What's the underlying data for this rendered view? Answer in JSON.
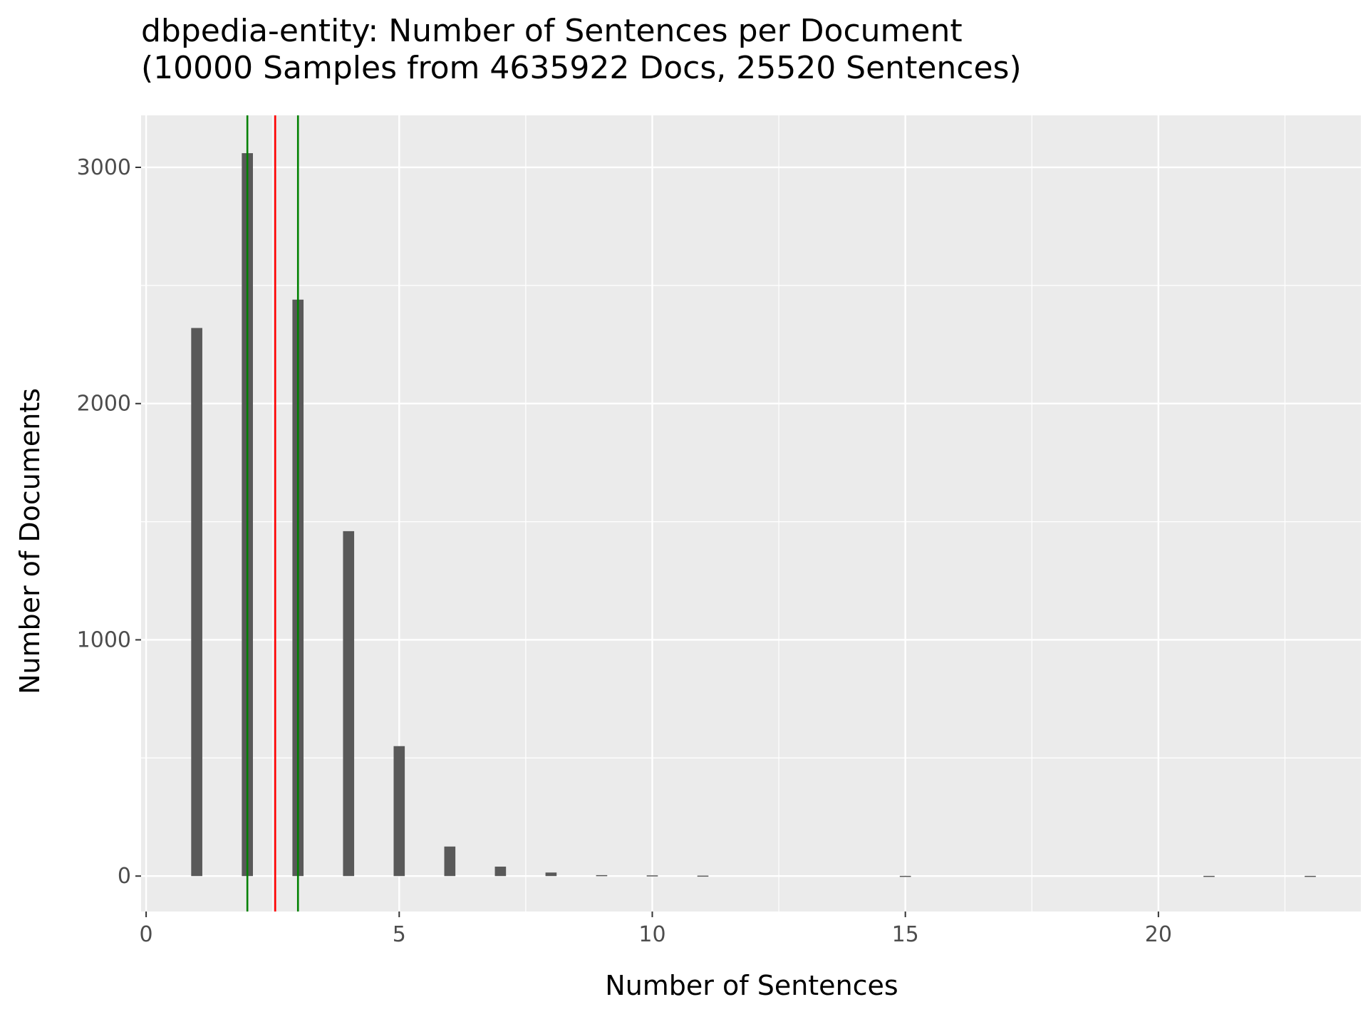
{
  "chart_data": {
    "type": "bar",
    "title_line1": "dbpedia-entity: Number of Sentences per Document",
    "title_line2": "(10000 Samples from 4635922 Docs, 25520 Sentences)",
    "xlabel": "Number of Sentences",
    "ylabel": "Number of Documents",
    "xlim": [
      -0.1,
      24.0
    ],
    "ylim": [
      -150,
      3220
    ],
    "x_ticks": [
      0,
      5,
      10,
      15,
      20
    ],
    "y_ticks": [
      0,
      1000,
      2000,
      3000
    ],
    "grid": true,
    "x": [
      1,
      2,
      3,
      4,
      5,
      6,
      7,
      8,
      9,
      10,
      11,
      15,
      21,
      23
    ],
    "values": [
      2320,
      3060,
      2440,
      1460,
      550,
      125,
      40,
      15,
      4,
      3,
      2,
      1,
      1,
      1
    ],
    "vlines": [
      {
        "x": 2.0,
        "color": "#008000"
      },
      {
        "x": 2.55,
        "color": "#ff0000"
      },
      {
        "x": 3.0,
        "color": "#008000"
      }
    ],
    "colors": {
      "bar": "#595959",
      "panel": "#ebebeb",
      "grid": "#ffffff",
      "tick_label": "#4d4d4d",
      "text": "#000000"
    }
  }
}
